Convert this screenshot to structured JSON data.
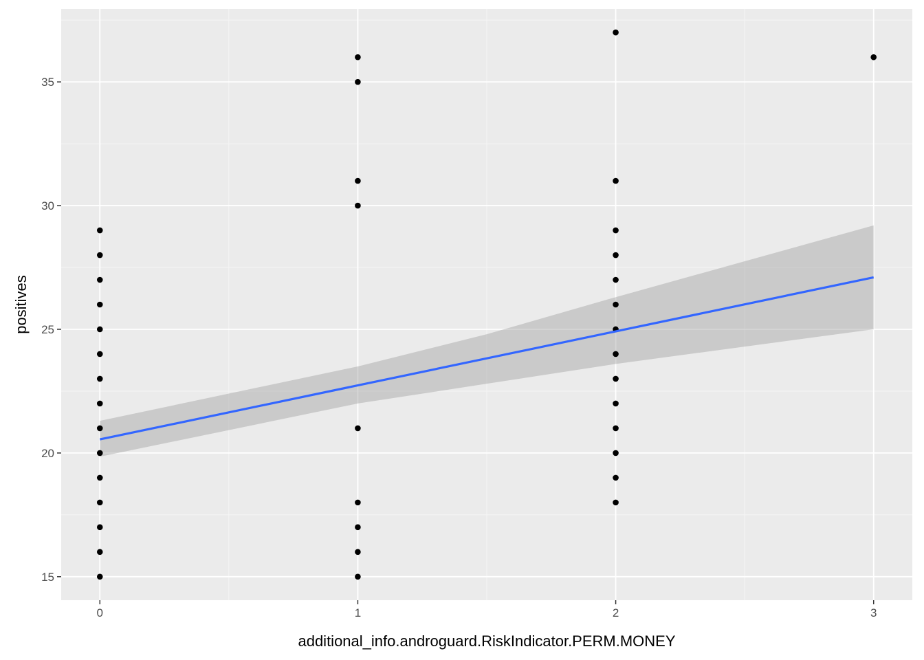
{
  "chart_data": {
    "type": "scatter",
    "xlabel": "additional_info.androguard.RiskIndicator.PERM.MONEY",
    "ylabel": "positives",
    "xlim": [
      -0.15,
      3.15
    ],
    "ylim": [
      14.05,
      37.95
    ],
    "x_ticks": [
      0,
      1,
      2,
      3
    ],
    "y_ticks": [
      15,
      20,
      25,
      30,
      35
    ],
    "x_tick_labels": [
      "0",
      "1",
      "2",
      "3"
    ],
    "y_tick_labels": [
      "15",
      "20",
      "25",
      "30",
      "35"
    ],
    "x_minor_gridlines": [
      0.5,
      1.5,
      2.5
    ],
    "y_minor_gridlines": [
      17.5,
      22.5,
      27.5,
      32.5,
      37.5
    ],
    "grid": true,
    "legend": "none",
    "points": [
      [
        0,
        15
      ],
      [
        0,
        16
      ],
      [
        0,
        17
      ],
      [
        0,
        18
      ],
      [
        0,
        19
      ],
      [
        0,
        20
      ],
      [
        0,
        21
      ],
      [
        0,
        22
      ],
      [
        0,
        23
      ],
      [
        0,
        24
      ],
      [
        0,
        25
      ],
      [
        0,
        26
      ],
      [
        0,
        27
      ],
      [
        0,
        28
      ],
      [
        0,
        29
      ],
      [
        1,
        15
      ],
      [
        1,
        16
      ],
      [
        1,
        17
      ],
      [
        1,
        18
      ],
      [
        1,
        21
      ],
      [
        1,
        30
      ],
      [
        1,
        31
      ],
      [
        1,
        35
      ],
      [
        1,
        36
      ],
      [
        2,
        18
      ],
      [
        2,
        19
      ],
      [
        2,
        20
      ],
      [
        2,
        21
      ],
      [
        2,
        22
      ],
      [
        2,
        23
      ],
      [
        2,
        24
      ],
      [
        2,
        25
      ],
      [
        2,
        26
      ],
      [
        2,
        27
      ],
      [
        2,
        28
      ],
      [
        2,
        29
      ],
      [
        2,
        31
      ],
      [
        2,
        37
      ],
      [
        3,
        36
      ]
    ],
    "fit_line": {
      "x": [
        0,
        3
      ],
      "y": [
        20.55,
        27.1
      ]
    },
    "confidence_band": {
      "x": [
        0,
        1,
        1.5,
        2,
        3
      ],
      "lower": [
        19.85,
        22.0,
        22.8,
        23.6,
        25.0
      ],
      "upper": [
        21.3,
        23.5,
        24.8,
        26.3,
        29.2
      ]
    },
    "colors": {
      "panel_background": "#ebebeb",
      "grid_major": "#ffffff",
      "grid_minor": "#f5f5f5",
      "point": "#000000",
      "fit_line": "#3366ff",
      "band": "#999999",
      "tick_text": "#4d4d4d",
      "axis_title": "#000000"
    }
  }
}
